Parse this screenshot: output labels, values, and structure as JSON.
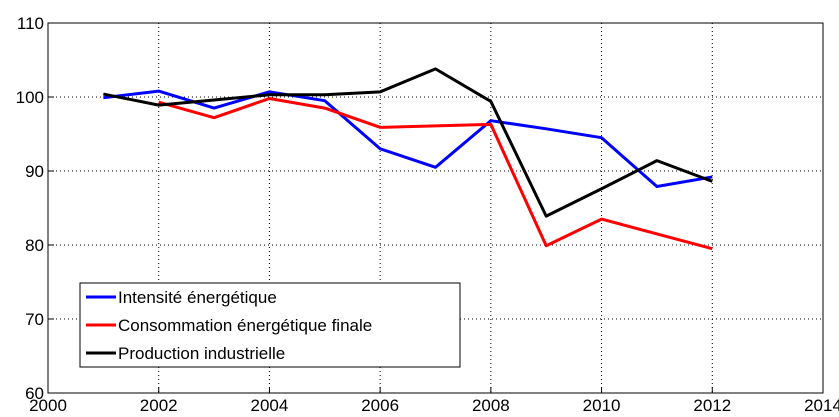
{
  "chart_data": {
    "type": "line",
    "x": [
      2001,
      2002,
      2003,
      2004,
      2005,
      2006,
      2007,
      2008,
      2009,
      2010,
      2011,
      2012
    ],
    "series": [
      {
        "name": "Intensité énergétique",
        "color": "#0000ff",
        "values": [
          99.9,
          100.8,
          98.5,
          100.7,
          99.5,
          93.0,
          90.5,
          96.8,
          95.7,
          94.5,
          87.9,
          89.2
        ]
      },
      {
        "name": "Consommation énergétique finale",
        "color": "#ff0000",
        "values": [
          null,
          99.3,
          97.2,
          99.8,
          98.5,
          95.9,
          96.1,
          96.3,
          79.9,
          83.5,
          81.5,
          79.5
        ]
      },
      {
        "name": "Production industrielle",
        "color": "#000000",
        "values": [
          100.4,
          98.9,
          99.6,
          100.3,
          100.3,
          100.7,
          103.8,
          99.4,
          83.9,
          87.6,
          91.4,
          88.6
        ]
      }
    ],
    "xlim": [
      2000,
      2014
    ],
    "xticks": [
      2000,
      2002,
      2004,
      2006,
      2008,
      2010,
      2012,
      2014
    ],
    "ylim": [
      60,
      110
    ],
    "yticks": [
      60,
      70,
      80,
      90,
      100,
      110
    ],
    "grid": true,
    "legend": "lower left"
  }
}
